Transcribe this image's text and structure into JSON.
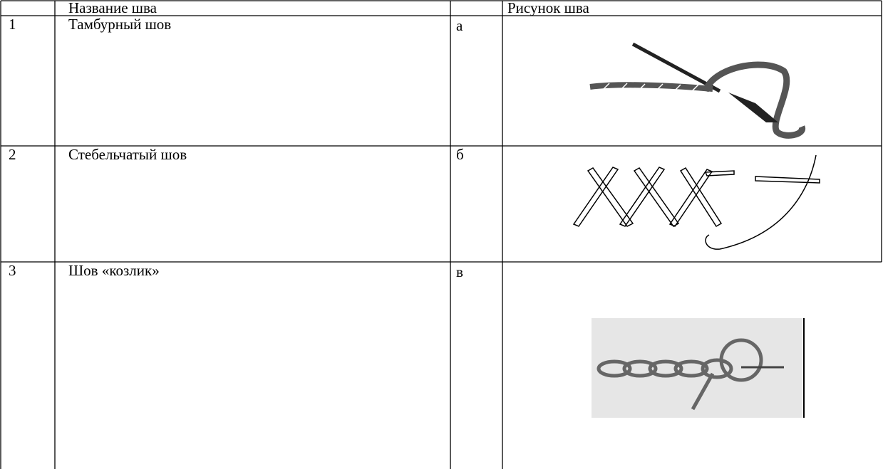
{
  "table": {
    "header": {
      "name": "Название шва",
      "picture": "Рисунок шва"
    },
    "rows": [
      {
        "number": "1",
        "name": "Тамбурный шов",
        "letter": "а"
      },
      {
        "number": "2",
        "name": "Стебельчатый шов",
        "letter": "б"
      },
      {
        "number": "3",
        "name": "Шов «козлик»",
        "letter": "в"
      }
    ]
  }
}
